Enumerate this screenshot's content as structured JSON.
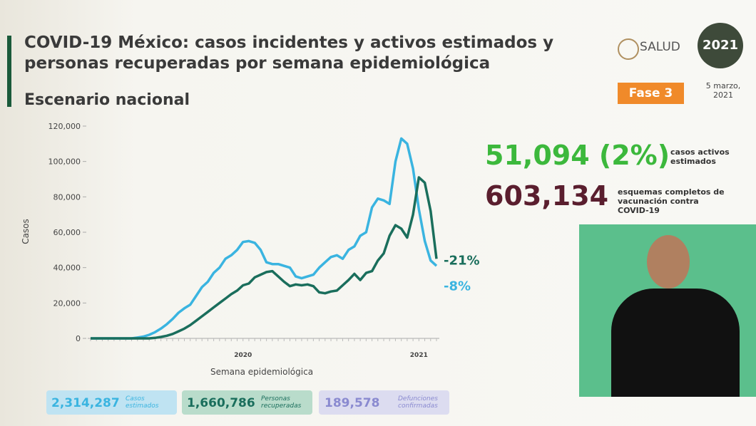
{
  "header": {
    "title": "COVID-19 México: casos incidentes y activos estimados y personas recuperadas por semana epidemiológica",
    "subtitle": "Escenario nacional",
    "brand": "SALUD",
    "phase": "Fase 3",
    "date": "5 marzo, 2021",
    "logo_year": "2021"
  },
  "highlights": [
    {
      "value": "51,094 (2%)",
      "label": "casos activos estimados"
    },
    {
      "value": "603,134",
      "label": "esquemas completos de vacunación contra COVID-19"
    }
  ],
  "summary": [
    {
      "value": "2,314,287",
      "label": "Casos estimados"
    },
    {
      "value": "1,660,786",
      "label": "Personas recuperadas"
    },
    {
      "value": "189,578",
      "label": "Defunciones confirmadas"
    }
  ],
  "chart_data": {
    "type": "line",
    "y_label": "Casos",
    "x_label": "Semana epidemiológica",
    "categories": [
      null,
      null,
      null,
      null,
      null,
      null,
      null,
      null,
      null,
      null,
      null,
      null,
      null,
      null,
      null,
      null,
      null,
      null,
      null,
      null,
      null,
      null,
      null,
      null,
      null,
      null,
      null,
      null,
      null,
      null,
      null,
      null,
      null,
      null,
      null,
      null,
      null,
      null,
      null,
      null,
      null,
      null,
      null,
      null,
      null,
      null,
      null,
      null,
      null,
      null,
      null,
      null,
      null,
      null,
      null,
      null,
      null,
      null,
      null,
      null
    ],
    "year_labels": [
      {
        "index": 26,
        "label": "2020"
      },
      {
        "index": 56,
        "label": "2021"
      }
    ],
    "ylim": [
      0,
      120000
    ],
    "yticks": [
      {
        "value": 0,
        "label": "0"
      },
      {
        "value": 20000,
        "label": "20,000"
      },
      {
        "value": 40000,
        "label": "40,000"
      },
      {
        "value": 60000,
        "label": "60,000"
      },
      {
        "value": 80000,
        "label": "80,000"
      },
      {
        "value": 100000,
        "label": "100,000"
      },
      {
        "value": 120000,
        "label": "120,000"
      }
    ],
    "grid": false,
    "series": [
      {
        "color": "#3ab4e0",
        "label": "-8%",
        "values": [
          0,
          0,
          0,
          0,
          0,
          0,
          0,
          0,
          500,
          1000,
          2000,
          3500,
          5500,
          8000,
          11000,
          14500,
          17000,
          19000,
          24000,
          29000,
          32000,
          37000,
          40000,
          45000,
          47000,
          50000,
          54500,
          55000,
          54000,
          50000,
          43000,
          42000,
          42000,
          41000,
          40000,
          35000,
          34000,
          35000,
          36000,
          40000,
          43000,
          46000,
          47000,
          45000,
          50000,
          52000,
          58000,
          60000,
          74000,
          79000,
          78000,
          76000,
          100000,
          113000,
          110000,
          96000,
          73000,
          55000,
          44000,
          41000
        ]
      },
      {
        "color": "#1a6e5c",
        "label": "-21%",
        "values": [
          0,
          0,
          0,
          0,
          0,
          0,
          0,
          0,
          0,
          0,
          0,
          300,
          800,
          1500,
          2500,
          4000,
          5500,
          7500,
          10000,
          12500,
          15000,
          17500,
          20000,
          22500,
          25000,
          27000,
          30000,
          31000,
          34500,
          36000,
          37500,
          38000,
          35000,
          32000,
          29500,
          30500,
          30000,
          30500,
          29500,
          26000,
          25500,
          26500,
          27000,
          30000,
          33000,
          36500,
          33000,
          37000,
          38000,
          44000,
          48000,
          58000,
          64000,
          62000,
          57000,
          70000,
          91000,
          88000,
          72000,
          45000
        ]
      }
    ]
  }
}
